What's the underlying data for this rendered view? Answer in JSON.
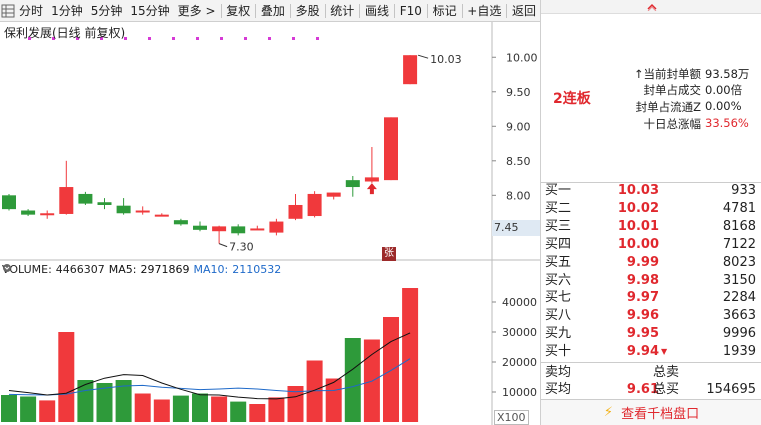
{
  "toolbar": {
    "items": [
      "分时",
      "1分钟",
      "5分钟",
      "15分钟",
      "更多 >",
      "复权",
      "叠加",
      "多股",
      "统计",
      "画线",
      "F10",
      "标记",
      "+自选",
      "返回"
    ]
  },
  "chart": {
    "stock_title": "保利发展(日线 前复权)",
    "high_label": "10.03",
    "low_label": "7.30",
    "last_price": "7.45",
    "zhang_tag": "张",
    "volume": {
      "label": "VOLUME:",
      "value": "4466307",
      "ma5_label": "MA5:",
      "ma5": "2971869",
      "ma10_label": "MA10:",
      "ma10": "2110532"
    },
    "unit": "X100",
    "colors": {
      "up": "#f0393c",
      "down": "#2e9a3a",
      "ma5": "#111111",
      "ma10": "#1f6ac9",
      "dot": "#d63ad6"
    }
  },
  "chart_data": {
    "type": "candlestick",
    "price_ticks": [
      "10.00",
      "9.50",
      "9.00",
      "8.50",
      "8.00"
    ],
    "price_range": [
      7.15,
      10.25
    ],
    "volume_ticks": [
      "40000",
      "30000",
      "20000",
      "10000"
    ],
    "volume_range": [
      0,
      46000
    ],
    "candles": [
      {
        "o": 8.0,
        "h": 8.02,
        "l": 7.78,
        "c": 7.8,
        "v": 9000
      },
      {
        "o": 7.78,
        "h": 7.8,
        "l": 7.7,
        "c": 7.72,
        "v": 8500
      },
      {
        "o": 7.74,
        "h": 7.78,
        "l": 7.66,
        "c": 7.74,
        "v": 7200
      },
      {
        "o": 7.73,
        "h": 8.5,
        "l": 7.72,
        "c": 8.12,
        "v": 30000
      },
      {
        "o": 8.02,
        "h": 8.05,
        "l": 7.86,
        "c": 7.88,
        "v": 14000
      },
      {
        "o": 7.9,
        "h": 7.96,
        "l": 7.8,
        "c": 7.86,
        "v": 13000
      },
      {
        "o": 7.85,
        "h": 7.96,
        "l": 7.72,
        "c": 7.74,
        "v": 14000
      },
      {
        "o": 7.78,
        "h": 7.84,
        "l": 7.72,
        "c": 7.78,
        "v": 9500
      },
      {
        "o": 7.72,
        "h": 7.74,
        "l": 7.7,
        "c": 7.72,
        "v": 7500
      },
      {
        "o": 7.64,
        "h": 7.66,
        "l": 7.56,
        "c": 7.58,
        "v": 8800
      },
      {
        "o": 7.56,
        "h": 7.62,
        "l": 7.48,
        "c": 7.5,
        "v": 9500
      },
      {
        "o": 7.48,
        "h": 7.56,
        "l": 7.3,
        "c": 7.55,
        "v": 8500
      },
      {
        "o": 7.55,
        "h": 7.58,
        "l": 7.42,
        "c": 7.45,
        "v": 6800
      },
      {
        "o": 7.5,
        "h": 7.56,
        "l": 7.5,
        "c": 7.52,
        "v": 6000
      },
      {
        "o": 7.46,
        "h": 7.66,
        "l": 7.42,
        "c": 7.62,
        "v": 8200
      },
      {
        "o": 7.66,
        "h": 8.02,
        "l": 7.64,
        "c": 7.86,
        "v": 12000
      },
      {
        "o": 7.7,
        "h": 8.06,
        "l": 7.68,
        "c": 8.02,
        "v": 20500
      },
      {
        "o": 7.98,
        "h": 8.04,
        "l": 7.94,
        "c": 8.04,
        "v": 14500
      },
      {
        "o": 8.22,
        "h": 8.28,
        "l": 7.98,
        "c": 8.12,
        "v": 28000
      },
      {
        "o": 8.2,
        "h": 8.7,
        "l": 8.18,
        "c": 8.26,
        "v": 27500
      },
      {
        "o": 8.22,
        "h": 9.13,
        "l": 8.22,
        "c": 9.13,
        "v": 35000
      },
      {
        "o": 9.61,
        "h": 10.03,
        "l": 9.61,
        "c": 10.03,
        "v": 44663
      }
    ],
    "ma5_points": [
      10500,
      9800,
      9000,
      9600,
      12500,
      14600,
      15800,
      15500,
      13000,
      10900,
      9100,
      9000,
      8300,
      7800,
      7700,
      8400,
      10600,
      13200,
      17600,
      22500,
      26800,
      29700
    ],
    "ma10_points": [
      9200,
      9100,
      9000,
      9300,
      10500,
      11300,
      12000,
      12200,
      11600,
      11200,
      10800,
      11000,
      11300,
      11000,
      10500,
      10100,
      10400,
      10500,
      11800,
      13600,
      17200,
      21100
    ]
  },
  "panel": {
    "lianban": "2连板",
    "stats": [
      {
        "label": "↑当前封单额",
        "value": "93.58万",
        "red": false
      },
      {
        "label": "封单占成交",
        "value": "0.00倍",
        "red": false
      },
      {
        "label": "封单占流通Z",
        "value": "0.00%",
        "red": false
      },
      {
        "label": "十日总涨幅",
        "value": "33.56%",
        "red": true
      }
    ],
    "bids": [
      {
        "label": "买一",
        "price": "10.03",
        "vol": "933"
      },
      {
        "label": "买二",
        "price": "10.02",
        "vol": "4781"
      },
      {
        "label": "买三",
        "price": "10.01",
        "vol": "8168"
      },
      {
        "label": "买四",
        "price": "10.00",
        "vol": "7122"
      },
      {
        "label": "买五",
        "price": "9.99",
        "vol": "8023"
      },
      {
        "label": "买六",
        "price": "9.98",
        "vol": "3150"
      },
      {
        "label": "买七",
        "price": "9.97",
        "vol": "2284"
      },
      {
        "label": "买八",
        "price": "9.96",
        "vol": "3663"
      },
      {
        "label": "买九",
        "price": "9.95",
        "vol": "9996"
      },
      {
        "label": "买十",
        "price": "9.94",
        "vol": "1939"
      }
    ],
    "avg": {
      "sell_label": "卖均",
      "sell_total_label": "总卖",
      "buy_label": "买均",
      "buy_price": "9.61",
      "buy_total_label": "总买",
      "buy_total": "154695"
    },
    "view_depth": "查看千档盘口"
  }
}
